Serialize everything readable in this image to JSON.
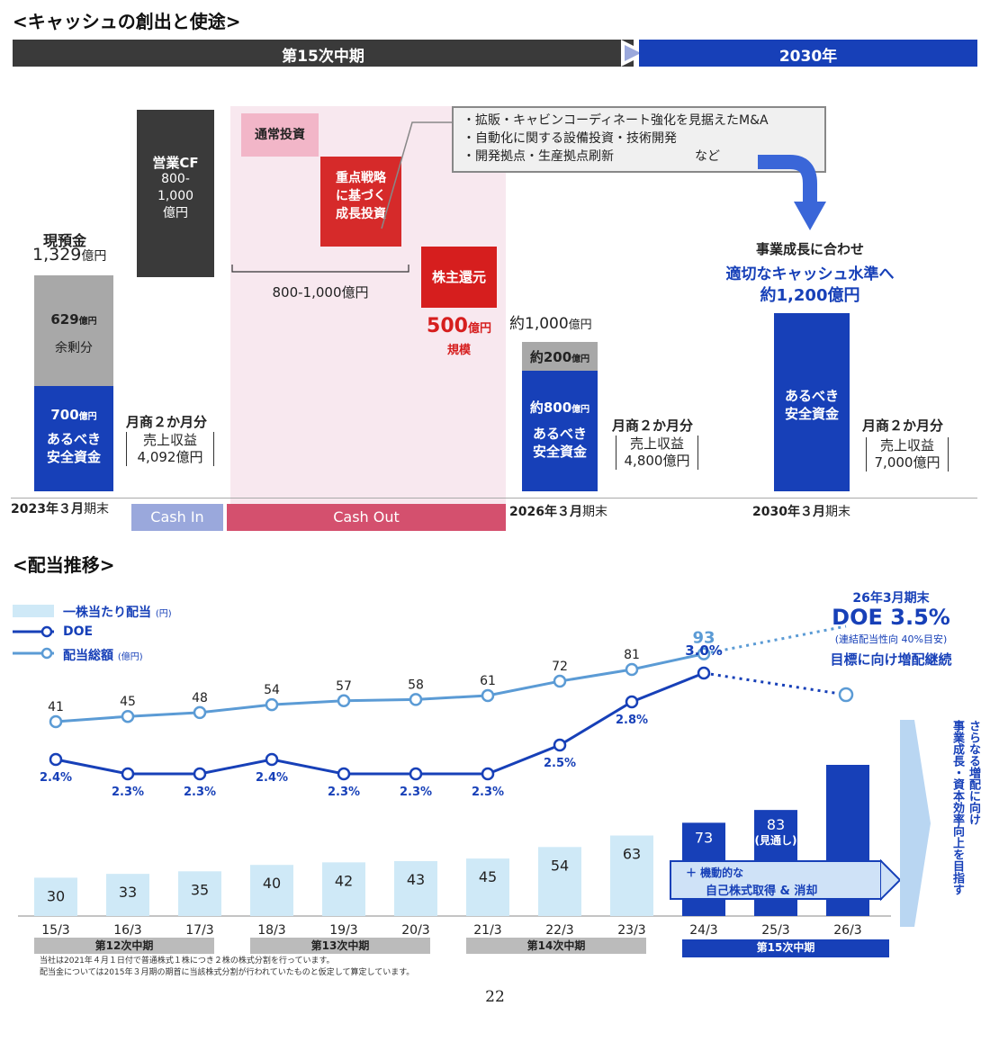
{
  "cash": {
    "section_title": "<キャッシュの創出と使途>",
    "period_current": "第15次中期",
    "period_next": "2030年",
    "opcf_label": "営業CF",
    "opcf_value": "800-\n1,000\n億円",
    "cash_label": "現預金",
    "cash_value_num": "1,329",
    "cash_value_unit": "億円",
    "surplus_num": "629",
    "surplus_unit": "億円",
    "surplus_label": "余剰分",
    "safe_num_2023": "700",
    "safe_unit": "億円",
    "safe_label": "あるべき\n安全資金",
    "sales_2023": {
      "line1": "月商２か月分",
      "line2": "売上収益",
      "line3": "4,092億円"
    },
    "normal_invest": "通常投資",
    "focus_invest": "重点戦略\nに基づく\n成長投資",
    "invest_range": "800-1,000億円",
    "shareholder_label": "株主還元",
    "shareholder_amount_num": "500",
    "shareholder_amount_unit": "億円",
    "shareholder_amount_sub": "規模",
    "callout_items": [
      "・拡販・キャビンコーディネート強化を見据えたM&A",
      "・自動化に関する設備投資・技術開発",
      "・開発拠点・生産拠点刷新"
    ],
    "callout_etc": "など",
    "total_2026_num": "約1,000",
    "total_2026_unit": "億円",
    "surplus_2026_num": "約200",
    "surplus_2026_unit": "億円",
    "safe_2026_num": "約800",
    "safe_2026_unit": "億円",
    "sales_2026": {
      "line1": "月商２か月分",
      "line2": "売上収益",
      "line3": "4,800億円"
    },
    "growth_line1": "事業成長に合わせ",
    "growth_line2": "適切なキャッシュ水準へ",
    "growth_line3": "約1,200億円",
    "safe_2030_label": "あるべき\n安全資金",
    "sales_2030": {
      "line1": "月商２か月分",
      "line2": "売上収益",
      "line3": "7,000億円"
    },
    "date_2023_num": "2023年３月",
    "date_2023_suffix": "期末",
    "date_2026_num": "2026年３月",
    "date_2026_suffix": "期末",
    "date_2030_num": "2030年３月",
    "date_2030_suffix": "期末",
    "cash_in": "Cash In",
    "cash_out": "Cash Out"
  },
  "dividend": {
    "section_title": "<配当推移>",
    "legend_dps": "一株当たり配当",
    "legend_dps_unit": "(円)",
    "legend_doe": "DOE",
    "legend_total": "配当総額",
    "legend_total_unit": "(億円)",
    "target_title": "26年3月期末",
    "target_doe": "DOE 3.5%",
    "target_note": "(連結配当性向 40%目安)",
    "target_text": "目標に向け増配継続",
    "forecast_label": "(見通し)",
    "buyback_line1": "＋ 機動的な",
    "buyback_line2": "自己株式取得 & 消却",
    "vertical_right": "さらなる増配に向け\n事業成長・資本効率向上を目指す",
    "periods": [
      {
        "label": "第12次中期"
      },
      {
        "label": "第13次中期"
      },
      {
        "label": "第14次中期"
      },
      {
        "label": "第15次中期"
      }
    ],
    "note_line1": "当社は2021年４月１日付で普通株式１株につき２株の株式分割を行っています。",
    "note_line2": "配当金については2015年３月期の期首に当該株式分割が行われていたものと仮定して算定しています。"
  },
  "page_number": "22",
  "chart_data": [
    {
      "type": "bar",
      "categories": [
        "2023年３月期末",
        "Cash In",
        "Cash Out",
        "2026年３月期末",
        "2030年３月期末"
      ],
      "series": [
        {
          "name": "あるべき安全資金",
          "values": [
            700,
            null,
            null,
            800,
            1200
          ]
        },
        {
          "name": "余剰分",
          "values": [
            629,
            null,
            null,
            200,
            null
          ]
        },
        {
          "name": "営業CF",
          "values": [
            null,
            "800-1,000",
            null,
            null,
            null
          ]
        },
        {
          "name": "通常投資・成長投資",
          "values": [
            null,
            null,
            "800-1,000",
            null,
            null
          ]
        },
        {
          "name": "株主還元",
          "values": [
            null,
            null,
            500,
            null,
            null
          ]
        }
      ]
    },
    {
      "type": "bar",
      "categories": [
        "15/3",
        "16/3",
        "17/3",
        "18/3",
        "19/3",
        "20/3",
        "21/3",
        "22/3",
        "23/3",
        "24/3",
        "25/3",
        "26/3"
      ],
      "series": [
        {
          "name": "一株当たり配当",
          "values": [
            30,
            33,
            35,
            40,
            42,
            43,
            45,
            54,
            63,
            73,
            83,
            null
          ]
        },
        {
          "name": "DOE",
          "values": [
            2.4,
            2.3,
            2.3,
            2.4,
            2.3,
            2.3,
            2.3,
            2.5,
            2.8,
            3.0,
            null,
            3.5
          ]
        },
        {
          "name": "配当総額",
          "values": [
            41,
            45,
            48,
            54,
            57,
            58,
            61,
            72,
            81,
            93,
            null,
            null
          ]
        }
      ],
      "labels": {
        "dps": [
          "30",
          "33",
          "35",
          "40",
          "42",
          "43",
          "45",
          "54",
          "63",
          "73",
          "83"
        ],
        "doe": [
          "2.4%",
          "2.3%",
          "2.3%",
          "2.4%",
          "2.3%",
          "2.3%",
          "2.3%",
          "2.5%",
          "2.8%",
          "3.0%"
        ],
        "total": [
          "41",
          "45",
          "48",
          "54",
          "57",
          "58",
          "61",
          "72",
          "81",
          "93"
        ]
      },
      "colors": {
        "dps_past": "#cfe9f7",
        "dps_current": "#1740b8",
        "doe": "#1740b8",
        "total": "#5b9bd5"
      }
    }
  ]
}
